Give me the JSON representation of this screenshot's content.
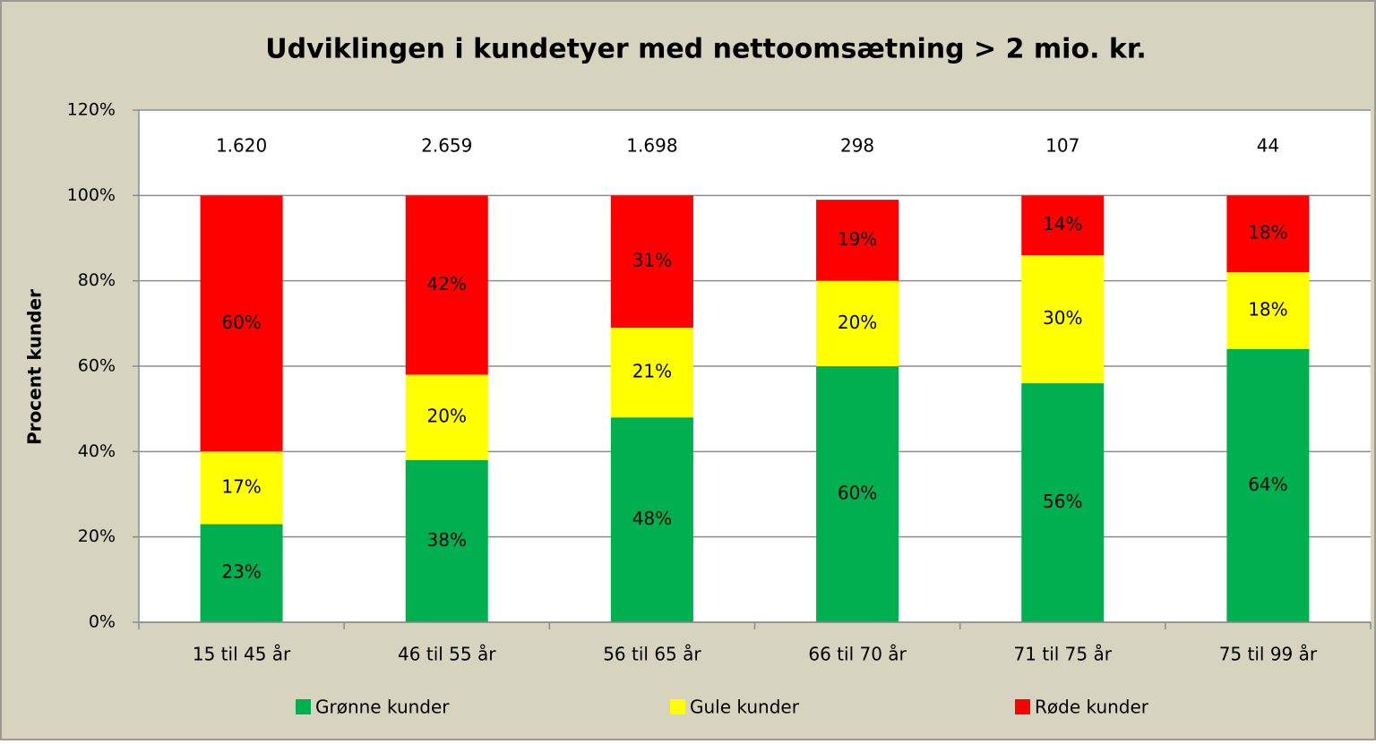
{
  "chart_data": {
    "type": "stacked_bar",
    "title": "Udviklingen i kundetyer med nettoomsætning > 2 mio. kr.",
    "y_label": "Procent kunder",
    "categories": [
      "15 til 45 år",
      "46 til 55 år",
      "56 til 65 år",
      "66 til 70 år",
      "71 til 75 år",
      "75 til 99 år"
    ],
    "bar_annotations": [
      "1.620",
      "2.659",
      "1.698",
      "298",
      "107",
      "44"
    ],
    "series": [
      {
        "name": "Grønne kunder",
        "color": "#00b050",
        "values": [
          23,
          38,
          48,
          60,
          56,
          64
        ],
        "value_labels": [
          "23%",
          "38%",
          "48%",
          "60%",
          "56%",
          "64%"
        ]
      },
      {
        "name": "Gule kunder",
        "color": "#ffff00",
        "values": [
          17,
          20,
          21,
          20,
          30,
          18
        ],
        "value_labels": [
          "17%",
          "20%",
          "21%",
          "20%",
          "30%",
          "18%"
        ]
      },
      {
        "name": "Røde kunder",
        "color": "#ff0000",
        "values": [
          60,
          42,
          31,
          19,
          14,
          18
        ],
        "value_labels": [
          "60%",
          "42%",
          "31%",
          "19%",
          "14%",
          "18%"
        ]
      }
    ],
    "ylim": [
      0,
      120
    ],
    "yticks": [
      {
        "value": 0,
        "label": "0%"
      },
      {
        "value": 20,
        "label": "20%"
      },
      {
        "value": 40,
        "label": "40%"
      },
      {
        "value": 60,
        "label": "60%"
      },
      {
        "value": 80,
        "label": "80%"
      },
      {
        "value": 100,
        "label": "100%"
      },
      {
        "value": 120,
        "label": "120%"
      }
    ],
    "grid": true,
    "legend": "bottom"
  }
}
